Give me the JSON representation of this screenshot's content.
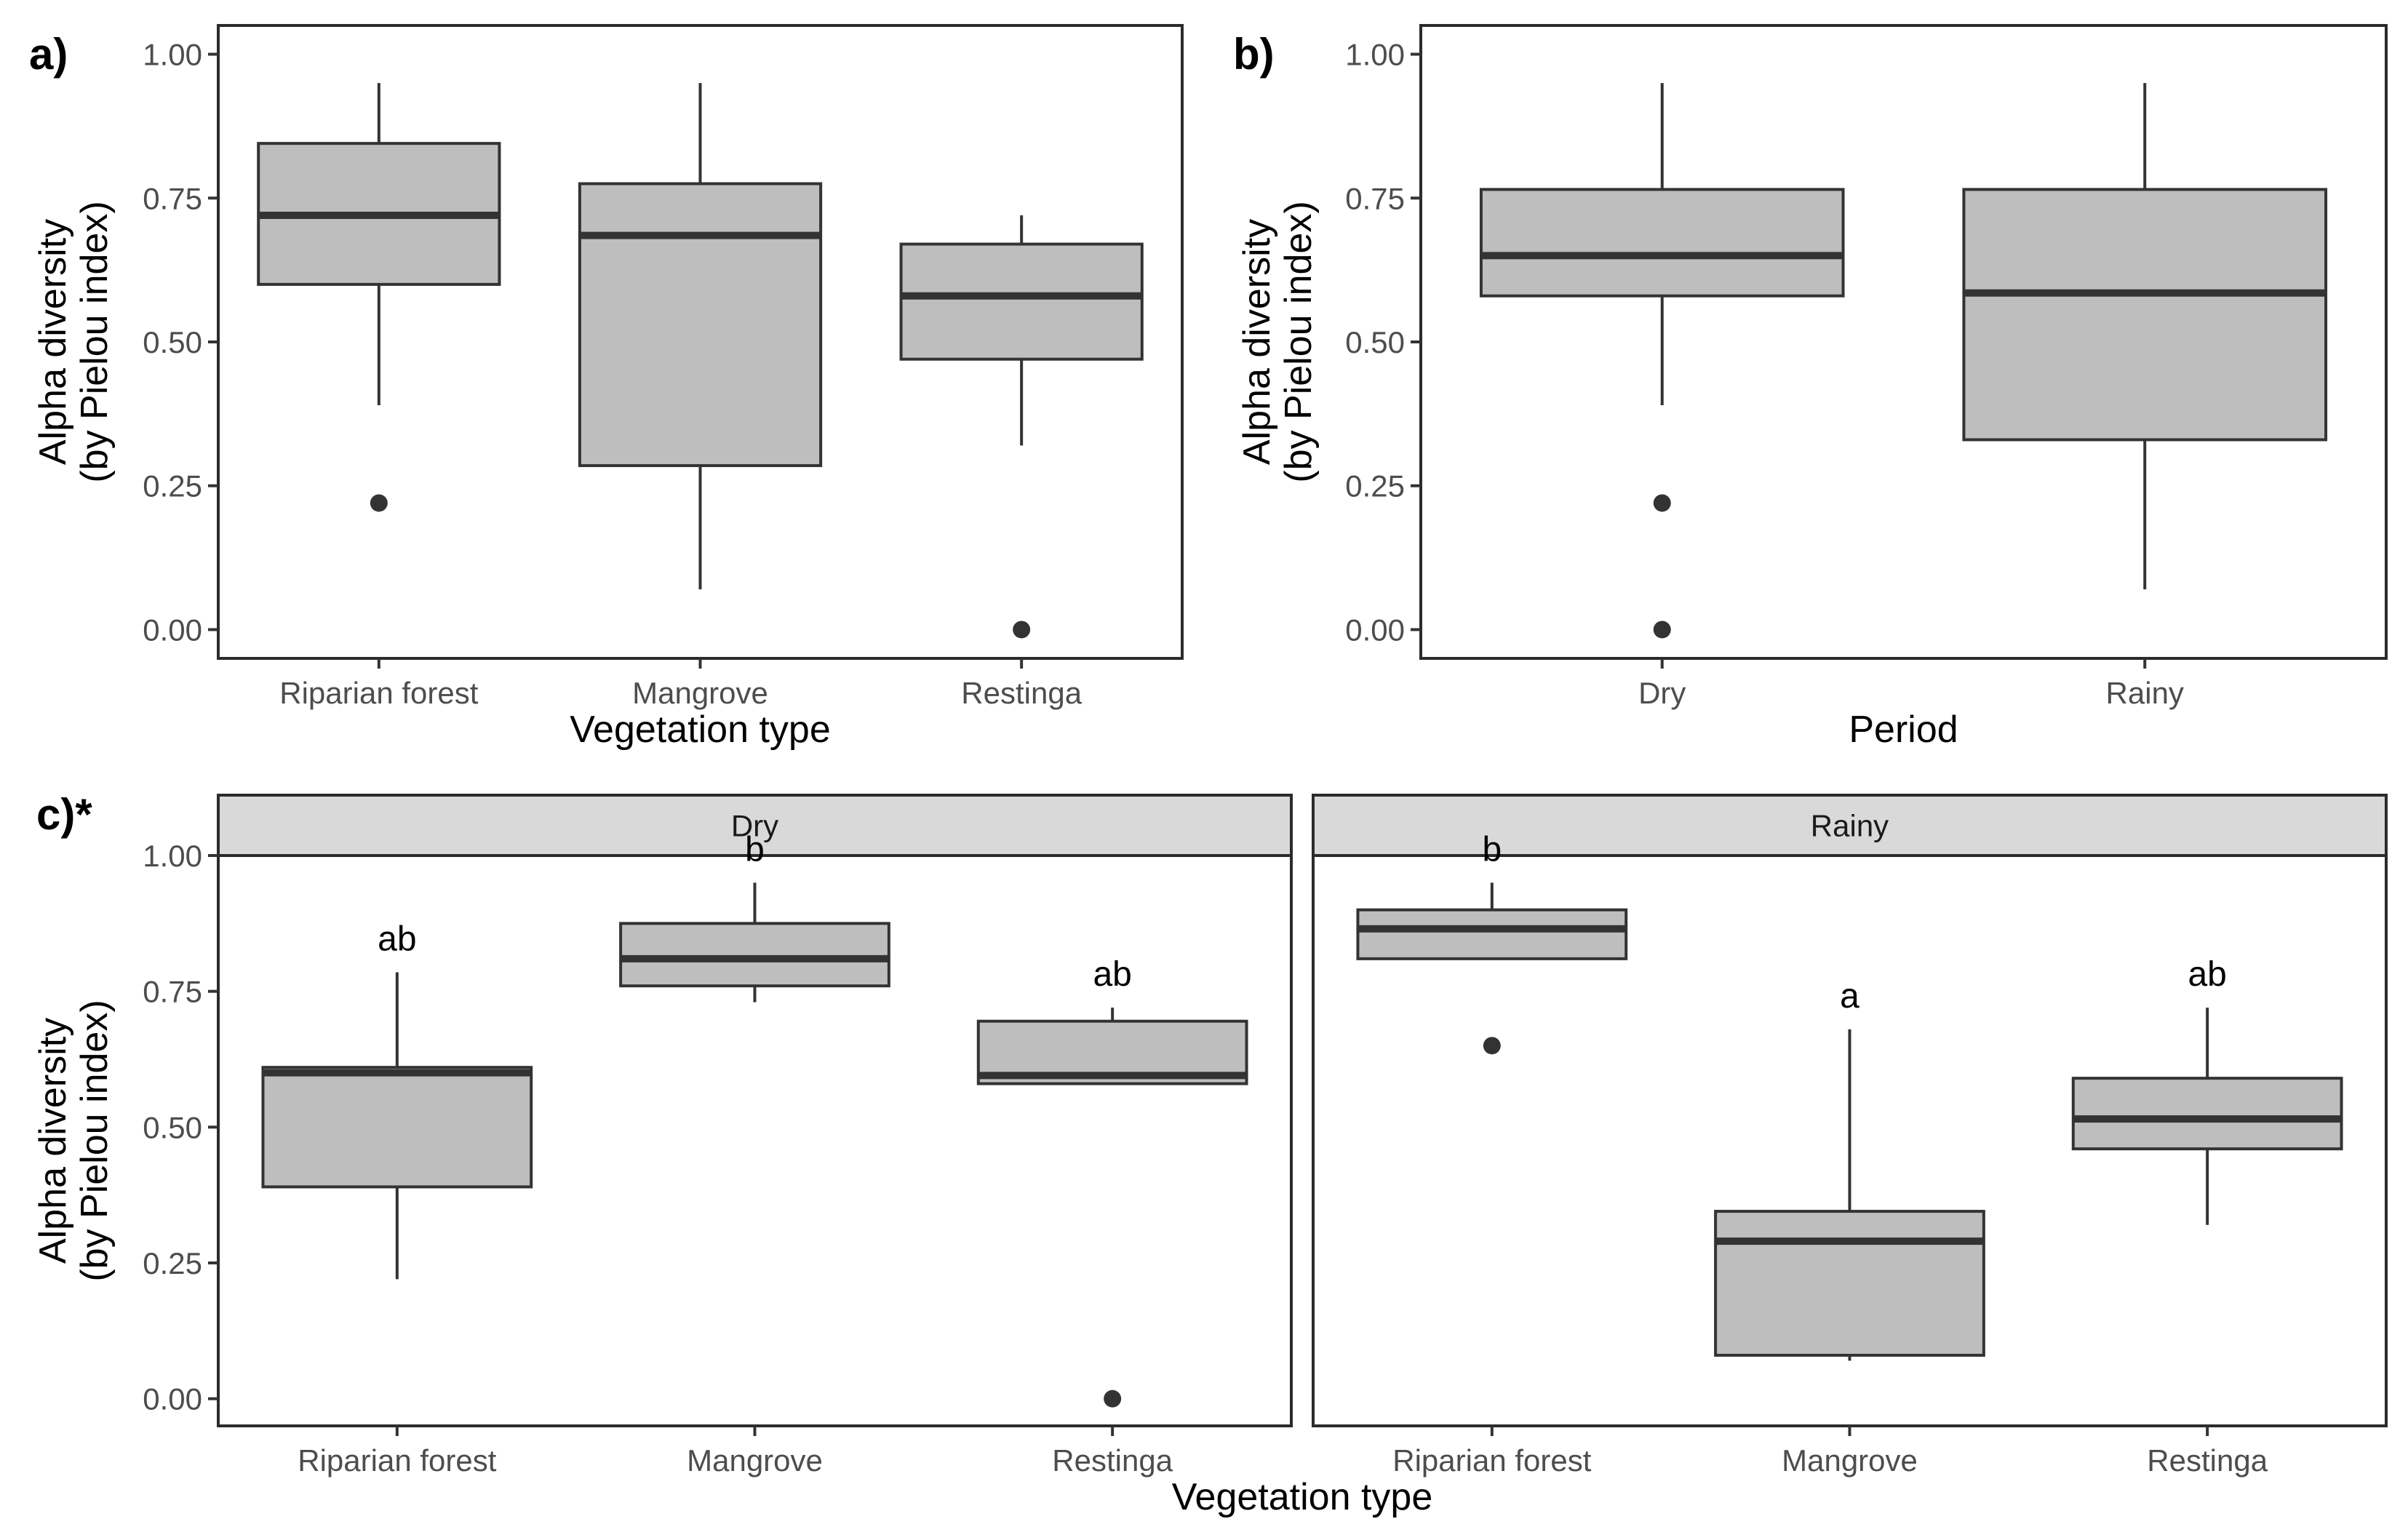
{
  "figure": {
    "panel_labels": [
      "a)",
      "b)",
      "c)*"
    ]
  },
  "chart_data": [
    {
      "type": "box",
      "panel": "a)",
      "title": "",
      "xlabel": "Vegetation type",
      "ylabel_line1": "Alpha diversity",
      "ylabel_line2": "(by Pielou index)",
      "ylim": [
        -0.05,
        1.05
      ],
      "yticks": [
        "0.00",
        "0.25",
        "0.50",
        "0.75",
        "1.00"
      ],
      "categories": [
        "Riparian forest",
        "Mangrove",
        "Restinga"
      ],
      "boxes": [
        {
          "min": 0.39,
          "q1": 0.6,
          "median": 0.72,
          "q3": 0.845,
          "max": 0.95,
          "outliers": [
            0.22
          ]
        },
        {
          "min": 0.07,
          "q1": 0.285,
          "median": 0.685,
          "q3": 0.775,
          "max": 0.95,
          "outliers": []
        },
        {
          "min": 0.32,
          "q1": 0.47,
          "median": 0.58,
          "q3": 0.67,
          "max": 0.72,
          "outliers": [
            0.0
          ]
        }
      ]
    },
    {
      "type": "box",
      "panel": "b)",
      "title": "",
      "xlabel": "Period",
      "ylabel_line1": "Alpha diversity",
      "ylabel_line2": "(by Pielou index)",
      "ylim": [
        -0.05,
        1.05
      ],
      "yticks": [
        "0.00",
        "0.25",
        "0.50",
        "0.75",
        "1.00"
      ],
      "categories": [
        "Dry",
        "Rainy"
      ],
      "boxes": [
        {
          "min": 0.39,
          "q1": 0.58,
          "median": 0.65,
          "q3": 0.765,
          "max": 0.95,
          "outliers": [
            0.22,
            0.0
          ]
        },
        {
          "min": 0.07,
          "q1": 0.33,
          "median": 0.585,
          "q3": 0.765,
          "max": 0.95,
          "outliers": []
        }
      ]
    },
    {
      "type": "box",
      "panel": "c)*",
      "title": "",
      "xlabel": "Vegetation type",
      "ylabel_line1": "Alpha diversity",
      "ylabel_line2": "(by Pielou index)",
      "ylim": [
        -0.05,
        1.0
      ],
      "yticks": [
        "0.00",
        "0.25",
        "0.50",
        "0.75",
        "1.00"
      ],
      "categories": [
        "Riparian forest",
        "Mangrove",
        "Restinga"
      ],
      "facets": [
        {
          "name": "Dry",
          "boxes": [
            {
              "min": 0.22,
              "q1": 0.39,
              "median": 0.6,
              "q3": 0.61,
              "max": 0.785,
              "outliers": [],
              "sig": "ab"
            },
            {
              "min": 0.73,
              "q1": 0.76,
              "median": 0.81,
              "q3": 0.875,
              "max": 0.95,
              "outliers": [],
              "sig": "b"
            },
            {
              "min": 0.58,
              "q1": 0.58,
              "median": 0.595,
              "q3": 0.695,
              "max": 0.72,
              "outliers": [
                0.0
              ],
              "sig": "ab"
            }
          ]
        },
        {
          "name": "Rainy",
          "boxes": [
            {
              "min": 0.81,
              "q1": 0.81,
              "median": 0.865,
              "q3": 0.9,
              "max": 0.95,
              "outliers": [
                0.65
              ],
              "sig": "b"
            },
            {
              "min": 0.07,
              "q1": 0.08,
              "median": 0.29,
              "q3": 0.345,
              "max": 0.68,
              "outliers": [],
              "sig": "a"
            },
            {
              "min": 0.32,
              "q1": 0.46,
              "median": 0.515,
              "q3": 0.59,
              "max": 0.72,
              "outliers": [],
              "sig": "ab"
            }
          ]
        }
      ]
    }
  ]
}
